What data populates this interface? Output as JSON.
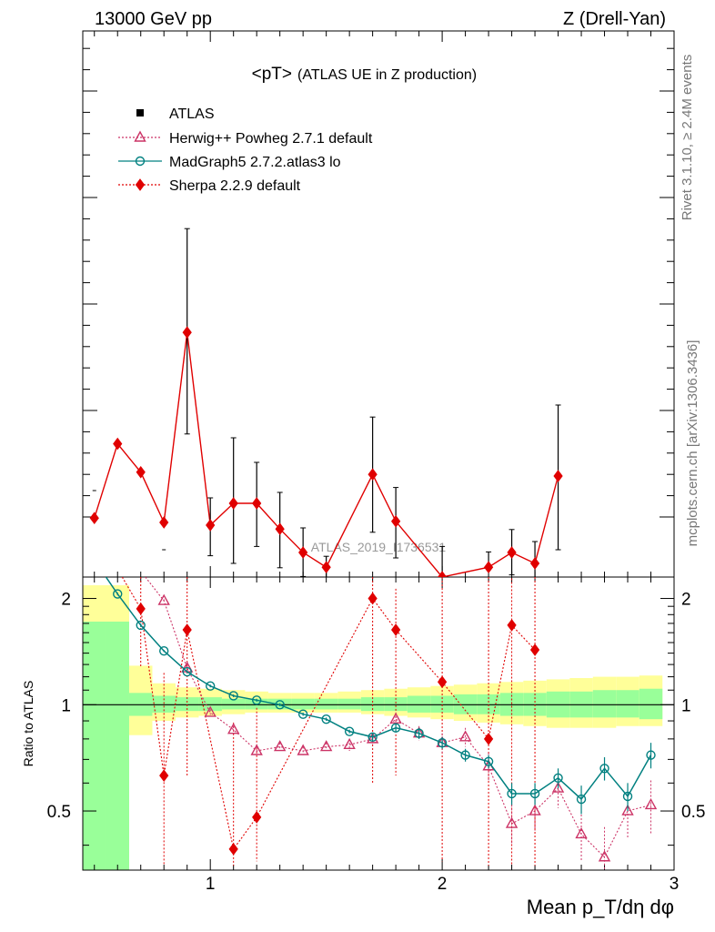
{
  "header": {
    "energy": "13000 GeV pp",
    "process": "Z (Drell-Yan)"
  },
  "side_labels": {
    "rivet": "Rivet 3.1.10, ≥ 2.4M events",
    "source": "mcplots.cern.ch [arXiv:1306.3436]"
  },
  "watermark": "ATLAS_2019_I1736531",
  "colors": {
    "atlas": "#000000",
    "herwig": "#cc3366",
    "madgraph": "#008080",
    "sherpa": "#e00000",
    "band_inner": "#99ff99",
    "band_outer": "#ffff99"
  },
  "chart_data": [
    {
      "type": "scatter",
      "panel": "main",
      "title": "<pT>",
      "title_suffix": "(ATLAS UE in Z production)",
      "xlabel": "Mean p_T/dη dφ",
      "ylabel": "",
      "xlim": [
        0.45,
        3.0
      ],
      "ylim": [
        0.0,
        1.0
      ],
      "y_tick_labels_visible": false,
      "legend_position": "top-left",
      "legend": [
        {
          "label": "ATLAS",
          "marker": "square"
        },
        {
          "label": "Herwig++ Powheg 2.7.1 default",
          "marker": "open-triangle"
        },
        {
          "label": "MadGraph5 2.7.2.atlas3 lo",
          "marker": "open-circle"
        },
        {
          "label": "Sherpa 2.2.9 default",
          "marker": "diamond"
        }
      ],
      "series": [
        {
          "name": "Sherpa 2.2.9 default",
          "x": [
            0.5,
            0.6,
            0.7,
            0.8,
            0.9,
            1.0,
            1.1,
            1.2,
            1.3,
            1.4,
            1.5,
            1.7,
            1.8,
            2.0,
            2.2,
            2.3,
            2.4,
            2.5
          ],
          "y": [
            0.108,
            0.244,
            0.192,
            0.1,
            0.448,
            0.095,
            0.135,
            0.135,
            0.088,
            0.045,
            0.018,
            0.188,
            0.102,
            0.0,
            0.018,
            0.045,
            0.025,
            0.185
          ],
          "err_low": [
            0.0,
            0.0,
            0.0,
            0.0,
            0.186,
            0.056,
            0.11,
            0.079,
            0.071,
            0.044,
            0.018,
            0.106,
            0.067,
            0.055,
            0.0,
            0.041,
            0.04,
            0.135
          ],
          "err_high": [
            0.0,
            0.0,
            0.0,
            0.0,
            0.19,
            0.05,
            0.12,
            0.075,
            0.067,
            0.045,
            0.02,
            0.105,
            0.062,
            0.056,
            0.028,
            0.042,
            0.04,
            0.13
          ]
        }
      ]
    },
    {
      "type": "line",
      "panel": "ratio",
      "xlabel": "Mean p_T/dη dφ",
      "ylabel": "Ratio to ATLAS",
      "xlim": [
        0.45,
        3.0
      ],
      "ylim": [
        0.34,
        2.3
      ],
      "x_ticks": [
        1,
        2,
        3
      ],
      "y_ticks": [
        0.5,
        1,
        2
      ],
      "reference_line": 1,
      "band_x": [
        0.45,
        0.55,
        0.65,
        0.75,
        0.85,
        0.95,
        1.05,
        1.15,
        1.25,
        1.35,
        1.45,
        1.55,
        1.65,
        1.75,
        1.85,
        1.95,
        2.05,
        2.15,
        2.25,
        2.35,
        2.45,
        2.55,
        2.65,
        2.75,
        2.85,
        2.95
      ],
      "band_inner_high": [
        1.72,
        1.72,
        1.08,
        1.06,
        1.05,
        1.05,
        1.04,
        1.04,
        1.04,
        1.04,
        1.04,
        1.04,
        1.05,
        1.05,
        1.06,
        1.06,
        1.07,
        1.07,
        1.08,
        1.08,
        1.09,
        1.09,
        1.1,
        1.1,
        1.11
      ],
      "band_inner_low": [
        0.3,
        0.3,
        0.93,
        0.95,
        0.96,
        0.96,
        0.97,
        0.97,
        0.97,
        0.97,
        0.97,
        0.97,
        0.96,
        0.96,
        0.95,
        0.95,
        0.94,
        0.94,
        0.93,
        0.93,
        0.92,
        0.92,
        0.92,
        0.92,
        0.91
      ],
      "band_outer_high": [
        2.18,
        2.18,
        1.29,
        1.15,
        1.12,
        1.11,
        1.1,
        1.09,
        1.08,
        1.08,
        1.08,
        1.09,
        1.1,
        1.11,
        1.12,
        1.13,
        1.14,
        1.15,
        1.16,
        1.17,
        1.18,
        1.19,
        1.2,
        1.2,
        1.21
      ],
      "band_outer_low": [
        0.3,
        0.3,
        0.82,
        0.9,
        0.92,
        0.93,
        0.94,
        0.95,
        0.95,
        0.95,
        0.95,
        0.95,
        0.94,
        0.93,
        0.92,
        0.91,
        0.9,
        0.89,
        0.88,
        0.87,
        0.86,
        0.86,
        0.86,
        0.87,
        0.87
      ],
      "series": [
        {
          "name": "MadGraph5 2.7.2.atlas3 lo",
          "x": [
            0.6,
            0.7,
            0.8,
            0.9,
            1.0,
            1.1,
            1.2,
            1.3,
            1.4,
            1.5,
            1.6,
            1.7,
            1.8,
            1.9,
            2.0,
            2.1,
            2.2,
            2.3,
            2.4,
            2.5,
            2.6,
            2.7,
            2.8,
            2.9
          ],
          "y": [
            2.06,
            1.68,
            1.42,
            1.24,
            1.13,
            1.06,
            1.03,
            1.0,
            0.94,
            0.91,
            0.84,
            0.81,
            0.86,
            0.83,
            0.78,
            0.72,
            0.69,
            0.56,
            0.56,
            0.62,
            0.54,
            0.66,
            0.55,
            0.72
          ],
          "err": [
            0.02,
            0.02,
            0.01,
            0.01,
            0.01,
            0.01,
            0.01,
            0.01,
            0.01,
            0.01,
            0.01,
            0.02,
            0.02,
            0.03,
            0.03,
            0.03,
            0.03,
            0.04,
            0.04,
            0.04,
            0.05,
            0.05,
            0.05,
            0.06
          ],
          "extends_to_top": true
        },
        {
          "name": "Herwig++ Powheg 2.7.1 default",
          "x": [
            0.8,
            0.9,
            1.0,
            1.1,
            1.2,
            1.3,
            1.4,
            1.5,
            1.6,
            1.7,
            1.8,
            1.9,
            2.0,
            2.1,
            2.2,
            2.3,
            2.4,
            2.5,
            2.6,
            2.7,
            2.8,
            2.9
          ],
          "y": [
            1.97,
            1.27,
            0.95,
            0.85,
            0.74,
            0.76,
            0.74,
            0.76,
            0.77,
            0.8,
            0.91,
            0.83,
            0.78,
            0.81,
            0.67,
            0.46,
            0.5,
            0.58,
            0.43,
            0.37,
            0.5,
            0.52
          ],
          "err": [
            0.02,
            0.02,
            0.02,
            0.02,
            0.02,
            0.02,
            0.02,
            0.02,
            0.03,
            0.03,
            0.04,
            0.04,
            0.05,
            0.05,
            0.06,
            0.06,
            0.06,
            0.07,
            0.07,
            0.08,
            0.08,
            0.09
          ]
        },
        {
          "name": "Sherpa 2.2.9 default",
          "x": [
            0.7,
            0.8,
            0.9,
            1.1,
            1.2,
            1.7,
            1.8,
            2.0,
            2.2,
            2.3,
            2.4
          ],
          "y": [
            1.87,
            0.63,
            1.63,
            0.39,
            0.48,
            2.0,
            1.63,
            1.16,
            0.8,
            1.68,
            1.43
          ],
          "err_low": [
            0.6,
            0.3,
            1.0,
            0.05,
            0.12,
            1.4,
            1.0,
            0.8,
            0.46,
            1.34,
            1.09
          ],
          "err_high": [
            0.5,
            0.6,
            0.7,
            0.5,
            0.5,
            0.4,
            0.5,
            1.2,
            1.5,
            0.6,
            0.9
          ]
        }
      ]
    }
  ]
}
